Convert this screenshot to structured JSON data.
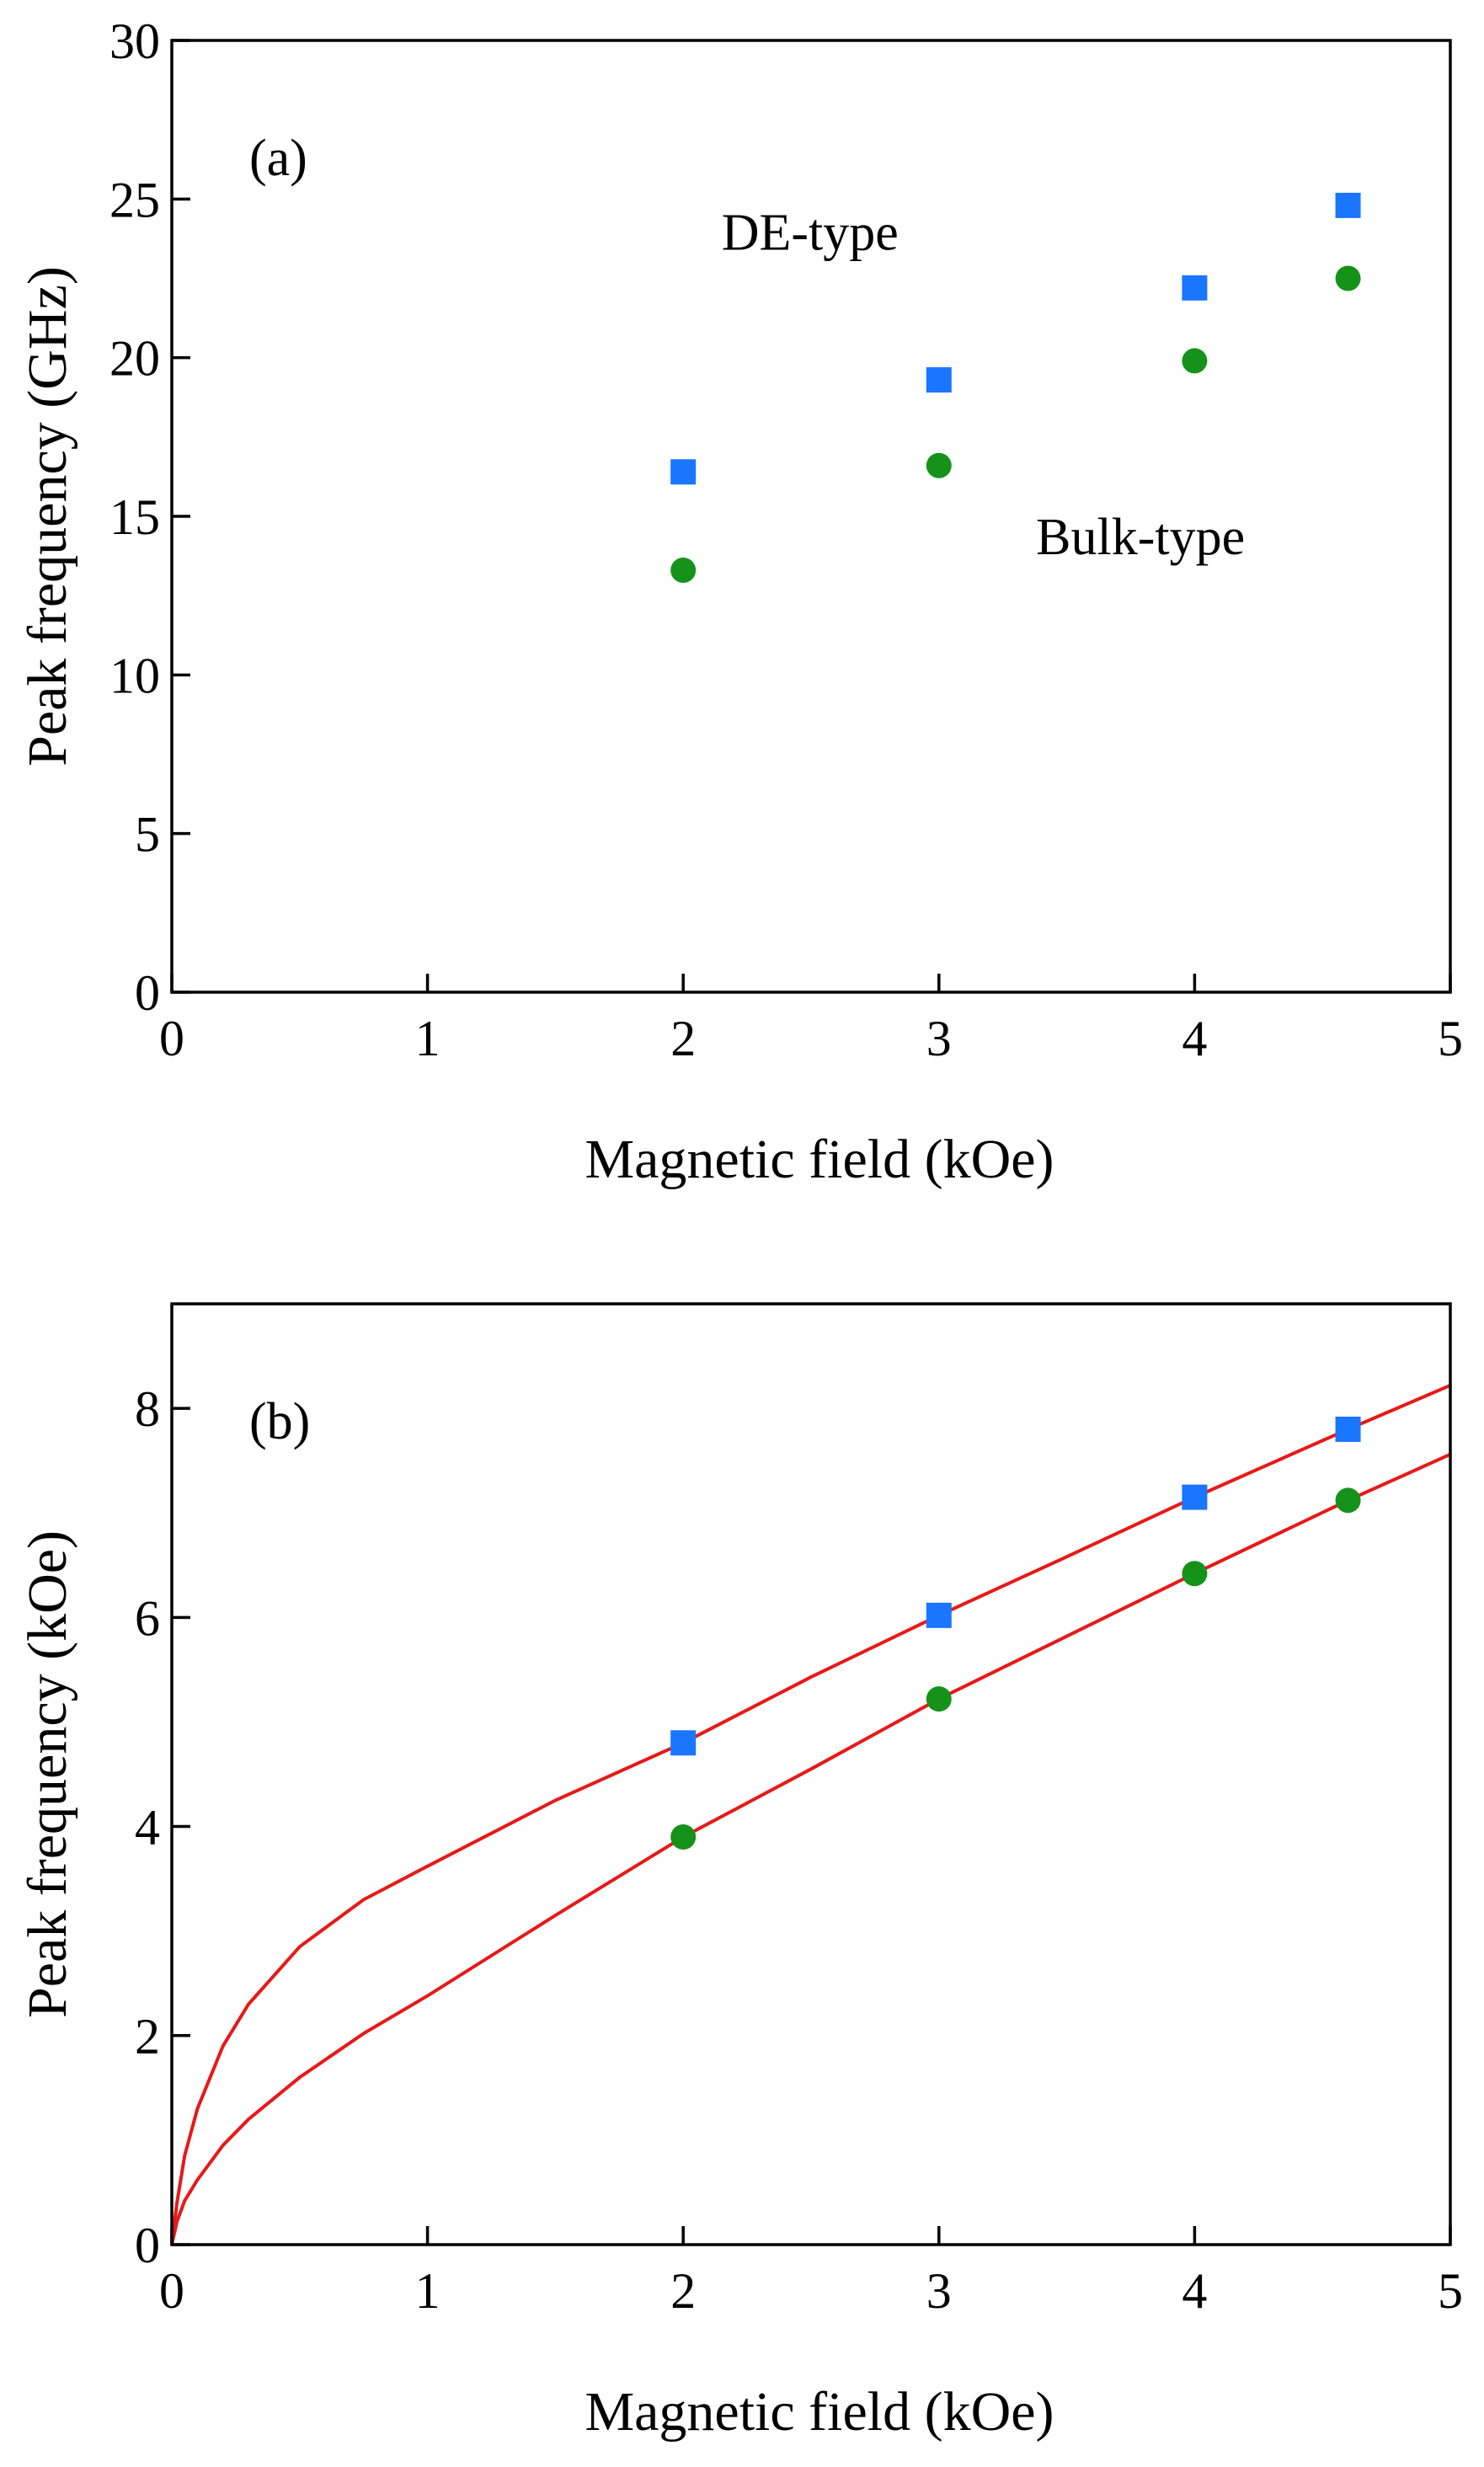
{
  "colors": {
    "de_marker": "#1a75ff",
    "bulk_marker": "#15921a",
    "fit_line": "#e81818",
    "axis": "#000000"
  },
  "chart_data": [
    {
      "type": "scatter",
      "panel_label": "(a)",
      "xlabel": "Magnetic field (kOe)",
      "ylabel": "Peak frequency (GHz)",
      "xlim": [
        0,
        5
      ],
      "ylim": [
        0,
        30
      ],
      "xticks": [
        0,
        1,
        2,
        3,
        4,
        5
      ],
      "yticks": [
        0,
        5,
        10,
        15,
        20,
        25,
        30
      ],
      "grid": false,
      "series": [
        {
          "name": "DE-type",
          "marker": "square",
          "x": [
            2,
            3,
            4,
            4.6
          ],
          "y": [
            16.4,
            19.3,
            22.2,
            24.8
          ]
        },
        {
          "name": "Bulk-type",
          "marker": "circle",
          "x": [
            2,
            3,
            4,
            4.6
          ],
          "y": [
            13.3,
            16.6,
            19.9,
            22.5
          ]
        }
      ],
      "annotations": [
        {
          "text": "DE-type",
          "x": 2.15,
          "y": 23.4
        },
        {
          "text": "Bulk-type",
          "x": 3.38,
          "y": 13.8
        }
      ]
    },
    {
      "type": "scatter",
      "panel_label": "(b)",
      "xlabel": "Magnetic field (kOe)",
      "ylabel": "Peak frequency (kOe)",
      "xlim": [
        0,
        5
      ],
      "ylim": [
        0,
        9
      ],
      "xticks": [
        0,
        1,
        2,
        3,
        4,
        5
      ],
      "yticks": [
        0,
        2,
        4,
        6,
        8
      ],
      "grid": false,
      "series": [
        {
          "name": "DE-type",
          "marker": "square",
          "x": [
            2,
            3,
            4,
            4.6
          ],
          "y": [
            4.8,
            6.02,
            7.15,
            7.8
          ]
        },
        {
          "name": "Bulk-type",
          "marker": "circle",
          "x": [
            2,
            3,
            4,
            4.6
          ],
          "y": [
            3.9,
            5.22,
            6.42,
            7.12
          ]
        }
      ],
      "fit_lines": [
        {
          "name": "DE-type fit",
          "x": [
            0,
            0.02,
            0.05,
            0.1,
            0.2,
            0.3,
            0.5,
            0.75,
            1,
            1.5,
            2,
            2.5,
            3,
            3.5,
            4,
            4.6,
            5
          ],
          "y": [
            0,
            0.4,
            0.85,
            1.3,
            1.9,
            2.3,
            2.85,
            3.3,
            3.62,
            4.25,
            4.8,
            5.43,
            6.02,
            6.58,
            7.15,
            7.8,
            8.22
          ]
        },
        {
          "name": "Bulk-type fit",
          "x": [
            0,
            0.02,
            0.05,
            0.1,
            0.2,
            0.3,
            0.5,
            0.75,
            1,
            1.5,
            2,
            2.5,
            3,
            3.5,
            4,
            4.6,
            5
          ],
          "y": [
            0,
            0.22,
            0.42,
            0.62,
            0.95,
            1.2,
            1.6,
            2.02,
            2.38,
            3.15,
            3.9,
            4.55,
            5.22,
            5.82,
            6.42,
            7.12,
            7.56
          ]
        }
      ]
    }
  ]
}
